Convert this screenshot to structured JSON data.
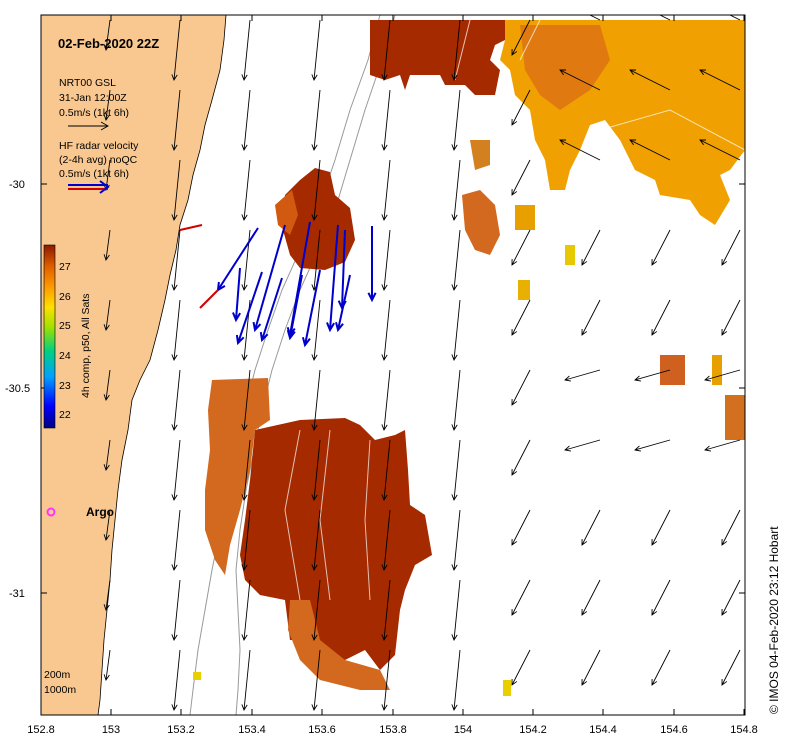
{
  "title": "02-Feb-2020 22Z",
  "legend": {
    "model_name": "NRT00 GSL",
    "model_time": "31-Jan 12:00Z",
    "model_scale": "0.5m/s (1kt 6h)",
    "radar_line1": "HF radar velocity",
    "radar_line2": "(2-4h avg) noQC",
    "radar_scale": "0.5m/s (1kt 6h)"
  },
  "colorbar": {
    "label": "4h comp, p50, All Sats",
    "ticks": [
      "27",
      "26",
      "25",
      "24",
      "23",
      "22"
    ]
  },
  "argo_label": "Argo",
  "depth_contours": [
    "200m",
    "1000m"
  ],
  "credit": "© IMOS 04-Feb-2020 23:12 Hobart",
  "axes": {
    "x_ticks": [
      "152.8",
      "153",
      "153.2",
      "153.4",
      "153.6",
      "153.8",
      "154",
      "154.2",
      "154.4",
      "154.6",
      "154.8"
    ],
    "y_ticks": [
      "-30",
      "-30.5",
      "-31"
    ]
  },
  "colors": {
    "land": "#f9c890",
    "sst_warm": "#a52a00",
    "sst_mid": "#d25a10",
    "sst_orange": "#f0a000",
    "radar_vectors": "#0000cc",
    "argo": "#ff33ff"
  }
}
